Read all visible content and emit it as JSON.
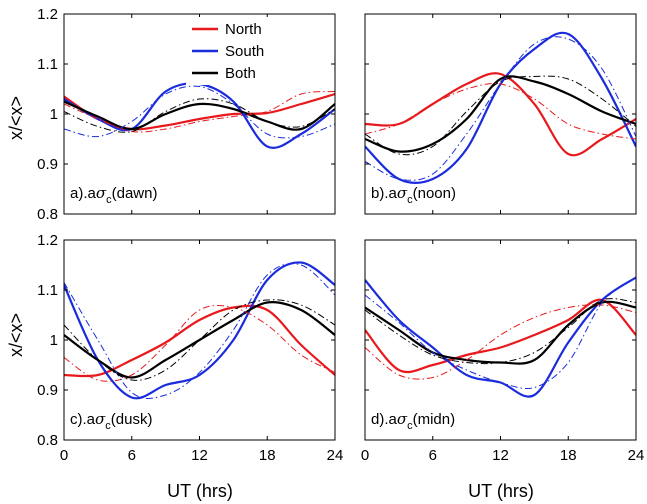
{
  "chart_data": {
    "type": "line",
    "xlabel": "UT (hrs)",
    "ylabel": "x/<x>",
    "xlim": [
      0,
      24
    ],
    "ylim": [
      0.8,
      1.2
    ],
    "xticks": [
      "0",
      "6",
      "12",
      "18",
      "24"
    ],
    "yticks": [
      "0.8",
      "0.9",
      "1",
      "1.1",
      "1.2"
    ],
    "grid": false,
    "legend": {
      "placement": "top-left of panel a",
      "entries": [
        {
          "label": "North",
          "color": "#e8191c"
        },
        {
          "label": "South",
          "color": "#1a2cdc"
        },
        {
          "label": "Both",
          "color": "#000000"
        }
      ]
    },
    "line_styles": {
      "solid": "observed",
      "dashdot": "fitted"
    },
    "panels": [
      {
        "id": "a",
        "label": {
          "prefix": "a).a",
          "symbol": "σ",
          "sub": "c",
          "suffix": "(dawn)"
        },
        "series": [
          {
            "color": "#e8191c",
            "style": "solid",
            "x": [
              0,
              3,
              6,
              9,
              12,
              15,
              18,
              21,
              24
            ],
            "y": [
              1.035,
              0.99,
              0.97,
              0.977,
              0.99,
              1.0,
              1.002,
              1.02,
              1.04
            ]
          },
          {
            "color": "#1a2cdc",
            "style": "solid",
            "x": [
              0,
              3,
              6,
              9,
              12,
              15,
              18,
              21,
              24
            ],
            "y": [
              1.03,
              0.99,
              0.97,
              1.045,
              1.06,
              1.025,
              0.935,
              0.96,
              1.01
            ]
          },
          {
            "color": "#000000",
            "style": "solid",
            "x": [
              0,
              3,
              6,
              9,
              12,
              15,
              18,
              21,
              24
            ],
            "y": [
              1.025,
              0.995,
              0.97,
              1.0,
              1.02,
              1.01,
              0.985,
              0.97,
              1.02
            ]
          },
          {
            "color": "#e8191c",
            "style": "dashdot",
            "x": [
              0,
              3,
              6,
              9,
              12,
              15,
              18,
              21,
              24
            ],
            "y": [
              1.02,
              0.99,
              0.965,
              0.97,
              0.985,
              0.995,
              1.005,
              1.04,
              1.045
            ]
          },
          {
            "color": "#1a2cdc",
            "style": "dashdot",
            "x": [
              0,
              3,
              6,
              9,
              12,
              15,
              18,
              21,
              24
            ],
            "y": [
              0.97,
              0.955,
              0.985,
              1.04,
              1.055,
              1.02,
              0.96,
              0.955,
              0.98
            ]
          },
          {
            "color": "#000000",
            "style": "dashdot",
            "x": [
              0,
              3,
              6,
              9,
              12,
              15,
              18,
              21,
              24
            ],
            "y": [
              1.005,
              0.975,
              0.965,
              1.005,
              1.03,
              1.02,
              0.985,
              0.975,
              1.01
            ]
          }
        ]
      },
      {
        "id": "b",
        "label": {
          "prefix": "b).a",
          "symbol": "σ",
          "sub": "c",
          "suffix": "(noon)"
        },
        "series": [
          {
            "color": "#e8191c",
            "style": "solid",
            "x": [
              0,
              3,
              6,
              9,
              12,
              15,
              18,
              21,
              24
            ],
            "y": [
              0.98,
              0.98,
              1.02,
              1.06,
              1.08,
              1.02,
              0.92,
              0.95,
              0.99
            ]
          },
          {
            "color": "#1a2cdc",
            "style": "solid",
            "x": [
              0,
              3,
              6,
              9,
              12,
              15,
              18,
              21,
              24
            ],
            "y": [
              0.935,
              0.87,
              0.87,
              0.93,
              1.06,
              1.13,
              1.16,
              1.07,
              0.935
            ]
          },
          {
            "color": "#000000",
            "style": "solid",
            "x": [
              0,
              3,
              6,
              9,
              12,
              15,
              18,
              21,
              24
            ],
            "y": [
              0.95,
              0.925,
              0.94,
              0.99,
              1.07,
              1.065,
              1.04,
              1.005,
              0.98
            ]
          },
          {
            "color": "#e8191c",
            "style": "dashdot",
            "x": [
              0,
              3,
              6,
              9,
              12,
              15,
              18,
              21,
              24
            ],
            "y": [
              0.96,
              0.98,
              1.02,
              1.05,
              1.06,
              1.03,
              0.98,
              0.96,
              0.95
            ]
          },
          {
            "color": "#1a2cdc",
            "style": "dashdot",
            "x": [
              0,
              3,
              6,
              9,
              12,
              15,
              18,
              21,
              24
            ],
            "y": [
              0.905,
              0.87,
              0.88,
              0.96,
              1.06,
              1.14,
              1.15,
              1.09,
              0.955
            ]
          },
          {
            "color": "#000000",
            "style": "dashdot",
            "x": [
              0,
              3,
              6,
              9,
              12,
              15,
              18,
              21,
              24
            ],
            "y": [
              0.96,
              0.92,
              0.935,
              1.005,
              1.065,
              1.075,
              1.07,
              1.03,
              0.975
            ]
          }
        ]
      },
      {
        "id": "c",
        "label": {
          "prefix": "c).a",
          "symbol": "σ",
          "sub": "c",
          "suffix": "(dusk)"
        },
        "series": [
          {
            "color": "#e8191c",
            "style": "solid",
            "x": [
              0,
              3,
              6,
              9,
              12,
              15,
              18,
              21,
              24
            ],
            "y": [
              0.93,
              0.93,
              0.96,
              0.995,
              1.04,
              1.065,
              1.06,
              0.99,
              0.93
            ]
          },
          {
            "color": "#1a2cdc",
            "style": "solid",
            "x": [
              0,
              3,
              6,
              9,
              12,
              15,
              18,
              21,
              24
            ],
            "y": [
              1.11,
              0.96,
              0.885,
              0.91,
              0.93,
              1.0,
              1.12,
              1.155,
              1.11
            ]
          },
          {
            "color": "#000000",
            "style": "solid",
            "x": [
              0,
              3,
              6,
              9,
              12,
              15,
              18,
              21,
              24
            ],
            "y": [
              1.01,
              0.96,
              0.925,
              0.96,
              1.0,
              1.04,
              1.075,
              1.06,
              1.01
            ]
          },
          {
            "color": "#e8191c",
            "style": "dashdot",
            "x": [
              0,
              3,
              6,
              9,
              12,
              15,
              18,
              21,
              24
            ],
            "y": [
              0.965,
              0.92,
              0.93,
              0.99,
              1.06,
              1.065,
              1.03,
              0.97,
              0.935
            ]
          },
          {
            "color": "#1a2cdc",
            "style": "dashdot",
            "x": [
              0,
              3,
              6,
              9,
              12,
              15,
              18,
              21,
              24
            ],
            "y": [
              1.115,
              1.0,
              0.895,
              0.89,
              0.935,
              1.02,
              1.13,
              1.15,
              1.09
            ]
          },
          {
            "color": "#000000",
            "style": "dashdot",
            "x": [
              0,
              3,
              6,
              9,
              12,
              15,
              18,
              21,
              24
            ],
            "y": [
              1.03,
              0.96,
              0.92,
              0.94,
              1.0,
              1.06,
              1.08,
              1.07,
              1.03
            ]
          }
        ]
      },
      {
        "id": "d",
        "label": {
          "prefix": "d).a",
          "symbol": "σ",
          "sub": "c",
          "suffix": "(midn)"
        },
        "series": [
          {
            "color": "#e8191c",
            "style": "solid",
            "x": [
              0,
              3,
              6,
              9,
              12,
              15,
              18,
              21,
              24
            ],
            "y": [
              1.02,
              0.94,
              0.95,
              0.97,
              0.985,
              1.01,
              1.04,
              1.08,
              1.01
            ]
          },
          {
            "color": "#1a2cdc",
            "style": "solid",
            "x": [
              0,
              3,
              6,
              9,
              12,
              15,
              18,
              21,
              24
            ],
            "y": [
              1.12,
              1.04,
              0.985,
              0.93,
              0.915,
              0.89,
              0.995,
              1.08,
              1.125
            ]
          },
          {
            "color": "#000000",
            "style": "solid",
            "x": [
              0,
              3,
              6,
              9,
              12,
              15,
              18,
              21,
              24
            ],
            "y": [
              1.065,
              1.02,
              0.975,
              0.96,
              0.955,
              0.96,
              1.03,
              1.075,
              1.065
            ]
          },
          {
            "color": "#e8191c",
            "style": "dashdot",
            "x": [
              0,
              3,
              6,
              9,
              12,
              15,
              18,
              21,
              24
            ],
            "y": [
              0.985,
              0.93,
              0.925,
              0.96,
              1.01,
              1.045,
              1.065,
              1.07,
              1.055
            ]
          },
          {
            "color": "#1a2cdc",
            "style": "dashdot",
            "x": [
              0,
              3,
              6,
              9,
              12,
              15,
              18,
              21,
              24
            ],
            "y": [
              1.09,
              1.035,
              0.975,
              0.94,
              0.915,
              0.905,
              0.955,
              1.075,
              1.125
            ]
          },
          {
            "color": "#000000",
            "style": "dashdot",
            "x": [
              0,
              3,
              6,
              9,
              12,
              15,
              18,
              21,
              24
            ],
            "y": [
              1.06,
              1.01,
              0.97,
              0.955,
              0.955,
              0.975,
              1.025,
              1.08,
              1.075
            ]
          }
        ]
      }
    ]
  }
}
